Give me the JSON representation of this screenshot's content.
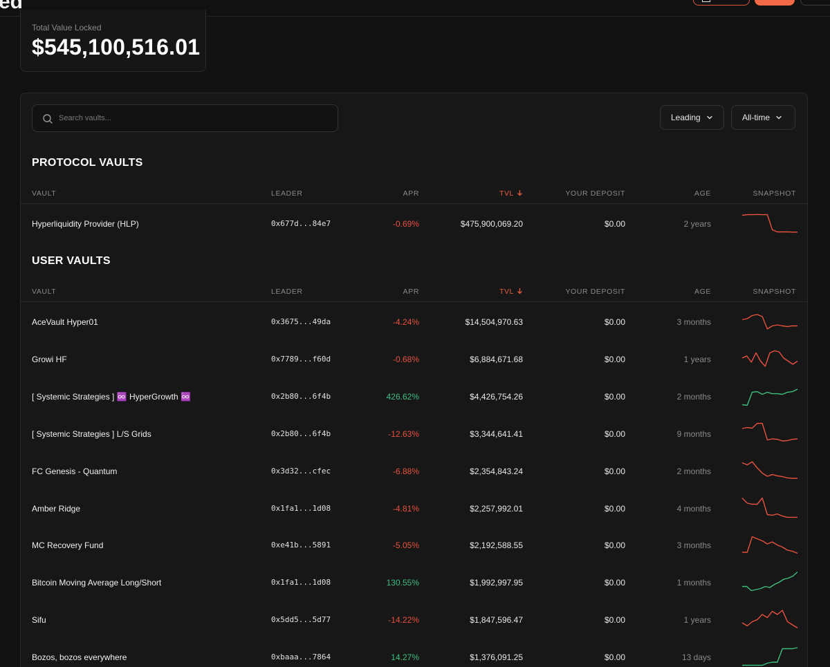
{
  "tvl": {
    "label": "Total Value Locked",
    "value": "$545,100,516.01"
  },
  "search": {
    "placeholder": "Search vaults..."
  },
  "filters": {
    "leader": "Leading",
    "period": "All-time"
  },
  "columns": {
    "vault": "VAULT",
    "leader": "LEADER",
    "apr": "APR",
    "tvl": "TVL",
    "deposit": "YOUR DEPOSIT",
    "age": "AGE",
    "snapshot": "SNAPSHOT"
  },
  "protocol": {
    "title": "PROTOCOL VAULTS",
    "rows": [
      {
        "name": "Hyperliquidity Provider (HLP)",
        "leader": "0x677d...84e7",
        "apr": "-0.69%",
        "tvl": "$475,900,069.20",
        "deposit": "$0.00",
        "age": "2 years",
        "trend": "neg",
        "spark": [
          0.85,
          0.88,
          0.88,
          0.89,
          0.88,
          0.88,
          0.15,
          0.05,
          0.05,
          0.05,
          0.04,
          0.04
        ]
      }
    ]
  },
  "user": {
    "title": "USER VAULTS",
    "rows": [
      {
        "name": "AceVault Hyper01",
        "leader": "0x3675...49da",
        "apr": "-4.24%",
        "tvl": "$14,504,970.63",
        "deposit": "$0.00",
        "age": "3 months",
        "trend": "neg",
        "spark": [
          0.55,
          0.6,
          0.75,
          0.8,
          0.7,
          0.1,
          0.25,
          0.3,
          0.25,
          0.22,
          0.25,
          0.25
        ]
      },
      {
        "name": "Growi HF",
        "leader": "0x7789...f60d",
        "apr": "-0.68%",
        "tvl": "$6,884,671.68",
        "deposit": "$0.00",
        "age": "1 years",
        "trend": "neg",
        "spark": [
          0.5,
          0.6,
          0.3,
          0.75,
          0.35,
          0.1,
          0.75,
          0.85,
          0.8,
          0.5,
          0.35,
          0.2,
          0.35
        ]
      },
      {
        "name": "[ Systemic Strategies ] ♾️ HyperGrowth ♾️",
        "leader": "0x2b80...6f4b",
        "apr": "426.62%",
        "tvl": "$4,426,754.26",
        "deposit": "$0.00",
        "age": "2 months",
        "trend": "pos",
        "spark": [
          0.05,
          0.02,
          0.65,
          0.68,
          0.55,
          0.65,
          0.58,
          0.58,
          0.55,
          0.65,
          0.68,
          0.8
        ]
      },
      {
        "name": "[ Systemic Strategies ] L/S Grids",
        "leader": "0x2b80...6f4b",
        "apr": "-12.63%",
        "tvl": "$3,344,641.41",
        "deposit": "$0.00",
        "age": "9 months",
        "trend": "neg",
        "spark": [
          0.7,
          0.75,
          0.72,
          0.95,
          0.95,
          0.15,
          0.2,
          0.18,
          0.1,
          0.12,
          0.18,
          0.2
        ]
      },
      {
        "name": "FC Genesis - Quantum",
        "leader": "0x3d32...cfec",
        "apr": "-6.88%",
        "tvl": "$2,354,843.24",
        "deposit": "$0.00",
        "age": "2 months",
        "trend": "neg",
        "spark": [
          0.85,
          0.75,
          0.9,
          0.6,
          0.35,
          0.2,
          0.28,
          0.22,
          0.18,
          0.12,
          0.1,
          0.1
        ]
      },
      {
        "name": "Amber Ridge",
        "leader": "0x1fa1...1d08",
        "apr": "-4.81%",
        "tvl": "$2,257,992.01",
        "deposit": "$0.00",
        "age": "4 months",
        "trend": "neg",
        "spark": [
          0.95,
          0.7,
          0.65,
          0.65,
          0.95,
          0.15,
          0.12,
          0.18,
          0.08,
          0.02,
          0.02,
          0.02
        ]
      },
      {
        "name": "MC Recovery Fund",
        "leader": "0xe41b...5891",
        "apr": "-5.05%",
        "tvl": "$2,192,588.55",
        "deposit": "$0.00",
        "age": "3 months",
        "trend": "neg",
        "spark": [
          0.1,
          0.1,
          0.85,
          0.75,
          0.65,
          0.5,
          0.6,
          0.45,
          0.35,
          0.2,
          0.15,
          0.05
        ]
      },
      {
        "name": "Bitcoin Moving Average Long/Short",
        "leader": "0x1fa1...1d08",
        "apr": "130.55%",
        "tvl": "$1,992,997.95",
        "deposit": "$0.00",
        "age": "1 months",
        "trend": "pos",
        "spark": [
          0.25,
          0.25,
          0.05,
          0.1,
          0.15,
          0.25,
          0.2,
          0.35,
          0.45,
          0.6,
          0.65,
          0.75,
          0.95
        ]
      },
      {
        "name": "Sifu",
        "leader": "0x5dd5...5d77",
        "apr": "-14.22%",
        "tvl": "$1,847,596.47",
        "deposit": "$0.00",
        "age": "1 years",
        "trend": "neg",
        "spark": [
          0.3,
          0.15,
          0.35,
          0.45,
          0.7,
          0.55,
          0.85,
          0.7,
          0.9,
          0.35,
          0.2,
          0.05
        ]
      },
      {
        "name": "Bozos, bozos everywhere",
        "leader": "0xbaaa...7864",
        "apr": "14.27%",
        "tvl": "$1,376,091.25",
        "deposit": "$0.00",
        "age": "13 days",
        "trend": "pos",
        "spark": [
          0.05,
          0.05,
          0.05,
          0.05,
          0.05,
          0.15,
          0.2,
          0.2,
          0.85,
          0.85,
          0.85,
          0.9
        ]
      }
    ]
  },
  "colors": {
    "accent": "#f26a45",
    "negative": "#e8523f",
    "positive": "#3fbf7f",
    "background": "#111111",
    "panel": "#171717"
  }
}
